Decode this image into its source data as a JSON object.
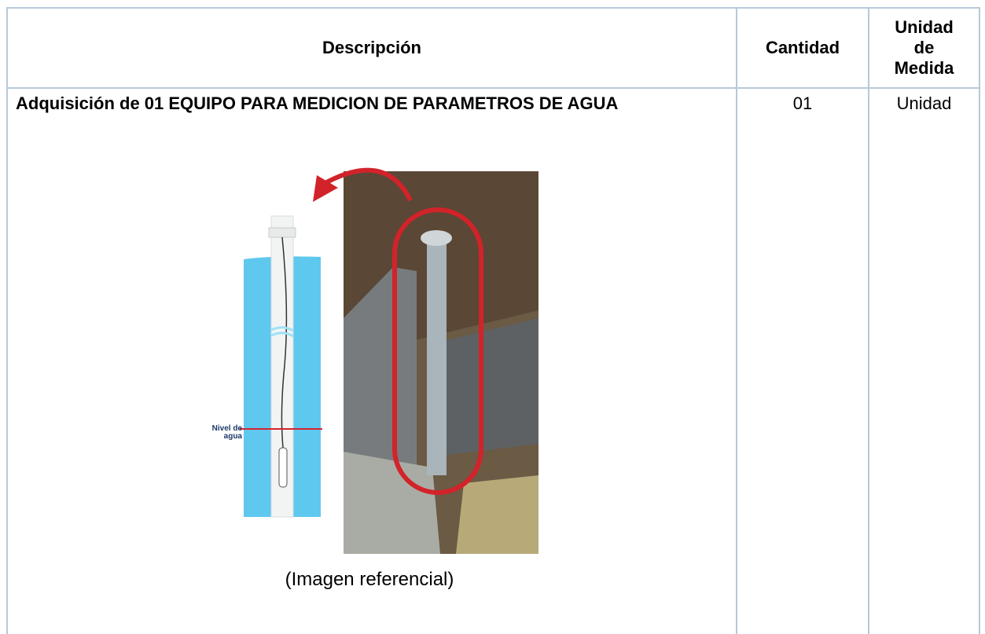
{
  "table": {
    "headers": [
      "Descripción",
      "Cantidad",
      "Unidad de Medida"
    ],
    "rows": [
      [
        "Adquisición de 01 EQUIPO PARA MEDICION DE PARAMETROS DE AGUA",
        "01",
        "Unidad"
      ]
    ]
  },
  "figure": {
    "label": "Nivel de agua",
    "caption": "(Imagen referencial)"
  }
}
